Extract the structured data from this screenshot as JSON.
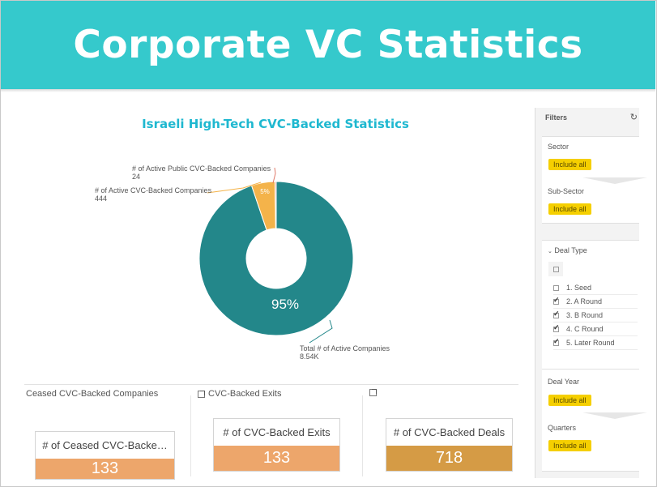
{
  "banner": {
    "title": "Corporate VC Statistics"
  },
  "chart": {
    "title": "Israeli High-Tech CVC-Backed Statistics"
  },
  "chart_data": {
    "type": "pie",
    "title": "Israeli High-Tech CVC-Backed Statistics",
    "slices": [
      {
        "label": "Total # of Active Companies",
        "value_text": "8.54K",
        "value": 8540,
        "percent_text": "95%",
        "color": "#23878a"
      },
      {
        "label": "# of Active CVC-Backed Companies",
        "value_text": "444",
        "value": 444,
        "percent_text": "5%",
        "color": "#f4b34a"
      },
      {
        "label": "# of Active Public CVC-Backed Companies",
        "value_text": "24",
        "value": 24,
        "percent_text": "",
        "color": "#e07a6a"
      }
    ]
  },
  "sections": {
    "ceased": {
      "title": "Ceased CVC-Backed Companies",
      "kpi_label": "# of Ceased CVC-Backe…",
      "kpi_value": "133",
      "color": "#eda66b"
    },
    "exits": {
      "title": "CVC-Backed Exits",
      "kpi_label": "# of CVC-Backed Exits",
      "kpi_value": "133",
      "color": "#eda66b"
    },
    "deals": {
      "title": "",
      "kpi_label": "# of CVC-Backed Deals",
      "kpi_value": "718",
      "color": "#d59b45"
    }
  },
  "filters": {
    "title": "Filters",
    "refresh_icon": "refresh-icon",
    "sector": {
      "label": "Sector",
      "chip": "Include all"
    },
    "sub_sector": {
      "label": "Sub-Sector",
      "chip": "Include all"
    },
    "deal_type": {
      "label": "Deal Type",
      "items": [
        {
          "label": "1. Seed",
          "checked": false
        },
        {
          "label": "2. A Round",
          "checked": true
        },
        {
          "label": "3. B Round",
          "checked": true
        },
        {
          "label": "4. C Round",
          "checked": true
        },
        {
          "label": "5. Later Round",
          "checked": true
        }
      ]
    },
    "deal_year": {
      "label": "Deal Year",
      "chip": "Include all"
    },
    "quarters": {
      "label": "Quarters",
      "chip": "Include all"
    }
  }
}
